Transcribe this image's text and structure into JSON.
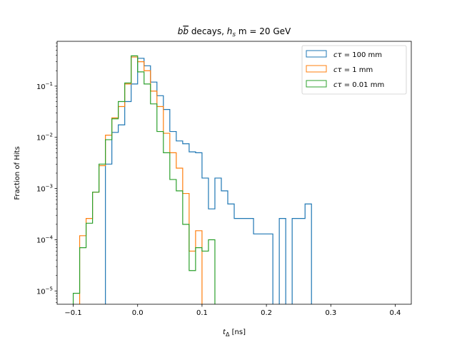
{
  "chart_data": {
    "type": "histogram-step",
    "title": "$b\\bar{b}$ decays, $h_s$ $m = 20$ GeV",
    "title_display": {
      "pre": "b",
      "bbar": "b",
      "decays": " decays, ",
      "h": "h",
      "sub": "s",
      "rest": " m = 20 GeV"
    },
    "xlabel": "$t_\\Delta$ [ns]",
    "xlabel_display": {
      "t": "t",
      "sub": "Δ",
      "rest": " [ns]"
    },
    "ylabel": "Fraction of Hits",
    "xlim": [
      -0.125,
      0.425
    ],
    "ylim": [
      5.5e-06,
      0.75
    ],
    "yscale": "log",
    "x_ticks": [
      "−0.1",
      "0.0",
      "0.1",
      "0.2",
      "0.3",
      "0.4"
    ],
    "x_tick_values": [
      -0.1,
      0.0,
      0.1,
      0.2,
      0.3,
      0.4
    ],
    "y_ticks": [
      {
        "value": 1e-05,
        "base": "10",
        "exp": "−5"
      },
      {
        "value": 0.0001,
        "base": "10",
        "exp": "−4"
      },
      {
        "value": 0.001,
        "base": "10",
        "exp": "−3"
      },
      {
        "value": 0.01,
        "base": "10",
        "exp": "−2"
      },
      {
        "value": 0.1,
        "base": "10",
        "exp": "−1"
      }
    ],
    "bin_start": -0.1,
    "bin_width": 0.01,
    "legend_placement": "top-right",
    "series": [
      {
        "name": "cτ = 100 mm",
        "name_display": {
          "c": "c",
          "tau": "τ",
          "rest": " = 100 mm"
        },
        "color": "#1f77b4",
        "values": [
          0,
          0,
          0,
          0,
          0.0,
          0.003,
          0.0125,
          0.0175,
          0.05,
          0.11,
          0.35,
          0.25,
          0.12,
          0.065,
          0.035,
          0.013,
          0.0085,
          0.0075,
          0.0052,
          0.005,
          0.0016,
          0.0004,
          0.0016,
          0.0009,
          0.0005,
          0.00026,
          0.00026,
          0.00026,
          0.00013,
          0.00013,
          0.00013,
          0,
          0.00026,
          0,
          0.00026,
          0.00026,
          0.0005,
          0,
          0,
          0,
          0,
          0,
          0,
          0,
          0,
          0,
          0,
          0,
          0,
          0
        ]
      },
      {
        "name": "cτ = 1 mm",
        "name_display": {
          "c": "c",
          "tau": "τ",
          "rest": " = 1 mm"
        },
        "color": "#ff7f0e",
        "values": [
          0,
          0.00012,
          0.00026,
          0.00085,
          0.0028,
          0.011,
          0.024,
          0.04,
          0.11,
          0.37,
          0.3,
          0.2,
          0.08,
          0.04,
          0.012,
          0.005,
          0.0025,
          0.0008,
          6e-05,
          0.00015,
          0,
          0,
          0,
          0,
          0,
          0,
          0,
          0,
          0,
          0,
          0,
          0,
          0,
          0,
          0,
          0,
          0,
          0,
          0,
          0,
          0,
          0,
          0,
          0,
          0,
          0,
          0,
          0,
          0,
          0
        ]
      },
      {
        "name": "cτ = 0.01 mm",
        "name_display": {
          "c": "c",
          "tau": "τ",
          "rest": " = 0.01 mm"
        },
        "color": "#2ca02c",
        "values": [
          9e-06,
          7e-05,
          0.00021,
          0.00085,
          0.003,
          0.009,
          0.023,
          0.05,
          0.115,
          0.39,
          0.19,
          0.11,
          0.045,
          0.013,
          0.005,
          0.0015,
          0.0009,
          0.0002,
          2.5e-05,
          7e-05,
          6e-05,
          0.0001,
          0,
          0,
          0,
          0,
          0,
          0,
          0,
          0,
          0,
          0,
          0,
          0,
          0,
          0,
          0,
          0,
          0,
          0,
          0,
          0,
          0,
          0,
          0,
          0,
          0,
          0,
          0,
          0
        ]
      }
    ]
  }
}
